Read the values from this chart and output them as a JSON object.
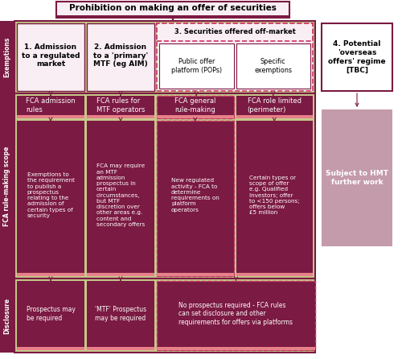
{
  "title": "Prohibition on making an offer of securities",
  "colors": {
    "dark_maroon": "#7B1A42",
    "olive_green": "#C5C98A",
    "white": "#FFFFFF",
    "cream": "#F9EEF3",
    "hmt_box": "#C49BAB",
    "dashed_border": "#CC3366",
    "salmon": "#E8808A",
    "label_text": "#FFFFFF"
  },
  "exemptions": {
    "box1_title": "1. Admission\nto a regulated\nmarket",
    "box2_title": "2. Admission\nto a 'primary'\nMTF (eg AIM)",
    "box3_title": "3. Securities offered off-market",
    "box3a": "Public offer\nplatform (POPs)",
    "box3b": "Specific\nexemptions",
    "box4_title": "4. Potential\n'overseas\noffers' regime\n[TBC]"
  },
  "fca_rules": {
    "col1_header": "FCA admission\nrules",
    "col2_header": "FCA rules for\nMTF operators",
    "col3_header": "FCA general\nrule-making",
    "col4_header": "FCA role limited\n(perimeter)",
    "col1_body": "Exemptions to\nthe requirement\nto publish a\nprospectus\nrelating to the\nadmission of\ncertain types of\nsecurity",
    "col2_body": "FCA may require\nan MTF\nadmission\nprospectus in\ncertain\ncircumstances,\nbut MTF\ndiscretion over\nother areas e.g.\ncontent and\nsecondary offers",
    "col3_body": "New regulated\nactivity - FCA to\ndetermine\nrequirements on\nplatform\noperators",
    "col4_body": "Certain types or\nscope of offer\ne.g. Qualified\nInvestors; offer\nto <150 persons;\noffers below\n£5 million",
    "hmt_header": "Subject to HMT\nfurther work"
  },
  "disclosure": {
    "col1": "Prospectus may\nbe required",
    "col2": "'MTF' Prospectus\nmay be required",
    "col3": "No prospectus required - FCA rules\ncan set disclosure and other\nrequirements for offers via platforms"
  },
  "sidebar_labels": {
    "exemptions": "Exemptions",
    "fca": "FCA rule-making scope",
    "disclosure": "Disclosure"
  },
  "layout": {
    "fig_w": 5.0,
    "fig_h": 4.46,
    "dpi": 100
  }
}
